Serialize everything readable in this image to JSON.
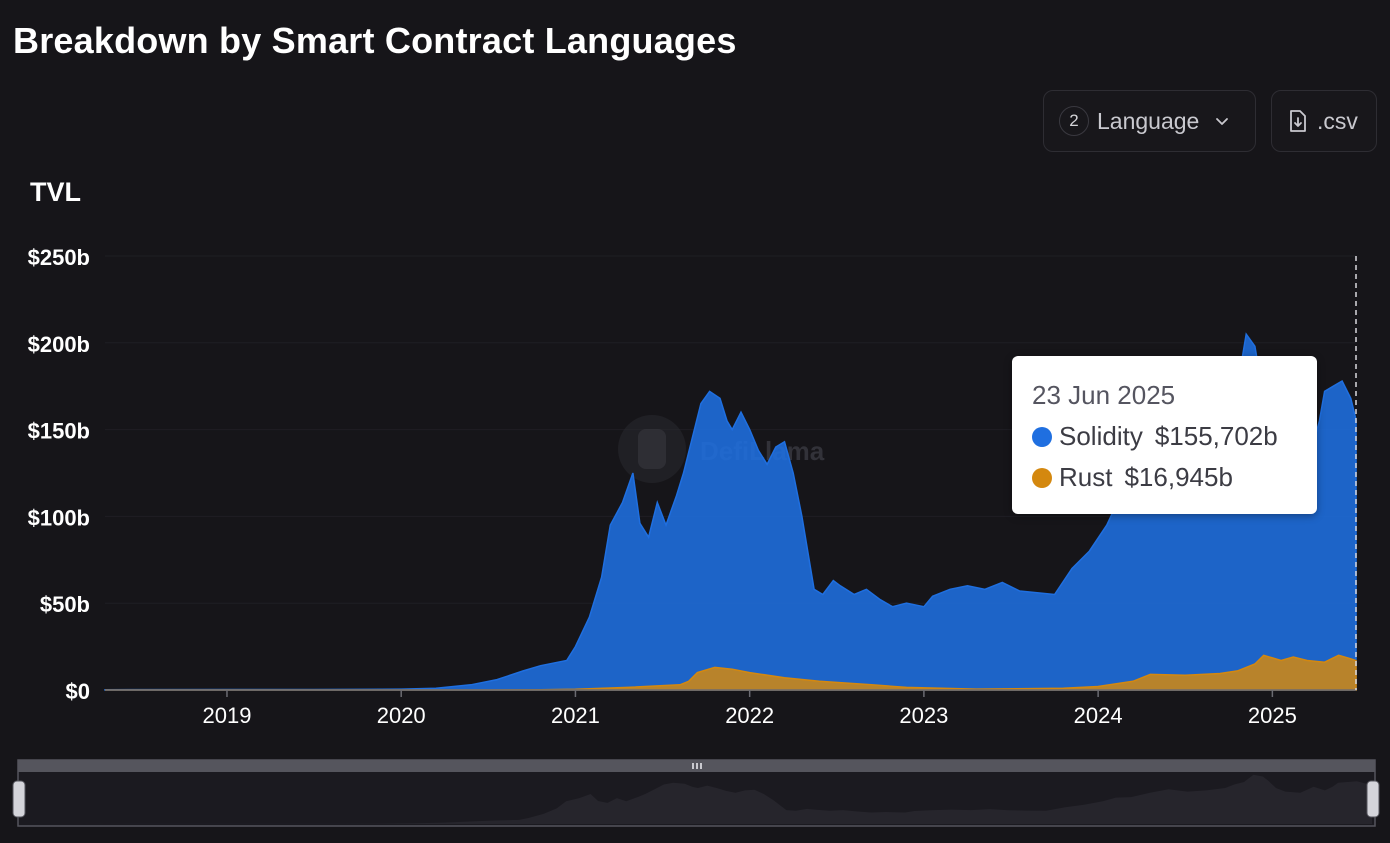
{
  "title": "Breakdown by Smart Contract Languages",
  "toolbar": {
    "language_count": "2",
    "language_label": "Language",
    "csv_label": ".csv"
  },
  "watermark": "DefiLlama",
  "tooltip": {
    "date": "23 Jun 2025",
    "rows": [
      {
        "name": "Solidity",
        "value": "$155,702b",
        "color": "#1f6fe0"
      },
      {
        "name": "Rust",
        "value": "$16,945b",
        "color": "#d4880f"
      }
    ]
  },
  "chart_data": {
    "type": "area",
    "stacked": false,
    "ylabel": "TVL",
    "ylim": [
      0,
      250
    ],
    "y_unit": "b",
    "y_ticks": [
      "$0",
      "$50b",
      "$100b",
      "$150b",
      "$200b",
      "$250b"
    ],
    "y_tick_values": [
      0,
      50,
      100,
      150,
      200,
      250
    ],
    "x_ticks": [
      "2019",
      "2020",
      "2021",
      "2022",
      "2023",
      "2024",
      "2025"
    ],
    "x_tick_values": [
      2019,
      2020,
      2021,
      2022,
      2023,
      2024,
      2025
    ],
    "xlim": [
      2018.3,
      2025.48
    ],
    "grid": true,
    "series": [
      {
        "name": "Solidity",
        "color": "#1f6fe0",
        "x": [
          2018.3,
          2019.0,
          2019.5,
          2020.0,
          2020.2,
          2020.4,
          2020.55,
          2020.7,
          2020.8,
          2020.95,
          2021.0,
          2021.08,
          2021.15,
          2021.2,
          2021.27,
          2021.33,
          2021.37,
          2021.42,
          2021.47,
          2021.52,
          2021.58,
          2021.62,
          2021.67,
          2021.72,
          2021.77,
          2021.83,
          2021.87,
          2021.9,
          2021.95,
          2022.0,
          2022.05,
          2022.1,
          2022.15,
          2022.2,
          2022.25,
          2022.3,
          2022.37,
          2022.42,
          2022.48,
          2022.52,
          2022.6,
          2022.67,
          2022.75,
          2022.82,
          2022.9,
          2023.0,
          2023.05,
          2023.15,
          2023.25,
          2023.35,
          2023.45,
          2023.55,
          2023.65,
          2023.75,
          2023.85,
          2023.95,
          2024.05,
          2024.12,
          2024.2,
          2024.3,
          2024.4,
          2024.5,
          2024.6,
          2024.7,
          2024.75,
          2024.8,
          2024.85,
          2024.9,
          2024.93,
          2024.97,
          2025.02,
          2025.1,
          2025.17,
          2025.23,
          2025.27,
          2025.3,
          2025.35,
          2025.4,
          2025.45,
          2025.48
        ],
        "values": [
          0.2,
          0.3,
          0.3,
          0.5,
          1,
          3,
          6,
          11,
          14,
          17,
          25,
          42,
          65,
          95,
          108,
          125,
          96,
          88,
          108,
          95,
          112,
          125,
          145,
          165,
          172,
          168,
          155,
          150,
          160,
          150,
          138,
          130,
          140,
          143,
          125,
          100,
          58,
          55,
          63,
          60,
          55,
          58,
          52,
          48,
          50,
          48,
          54,
          58,
          60,
          58,
          62,
          57,
          56,
          55,
          70,
          80,
          95,
          110,
          112,
          130,
          145,
          135,
          140,
          150,
          165,
          175,
          205,
          198,
          180,
          150,
          135,
          130,
          155,
          140,
          155,
          172,
          175,
          178,
          168,
          155.7
        ]
      },
      {
        "name": "Rust",
        "color": "#d4880f",
        "x": [
          2018.3,
          2020.5,
          2020.8,
          2021.0,
          2021.3,
          2021.6,
          2021.65,
          2021.7,
          2021.8,
          2021.9,
          2022.0,
          2022.2,
          2022.4,
          2022.7,
          2022.9,
          2023.3,
          2023.8,
          2024.0,
          2024.2,
          2024.3,
          2024.5,
          2024.7,
          2024.8,
          2024.9,
          2024.95,
          2025.05,
          2025.12,
          2025.2,
          2025.3,
          2025.38,
          2025.45,
          2025.48
        ],
        "values": [
          0,
          0,
          0.2,
          0.4,
          1.5,
          3,
          5,
          10,
          13,
          12,
          10,
          7,
          5,
          3,
          1.5,
          0.5,
          1,
          2,
          5,
          9,
          8.5,
          9.5,
          11,
          15,
          20,
          17,
          19,
          17,
          16,
          20,
          18,
          16.9
        ]
      }
    ]
  }
}
